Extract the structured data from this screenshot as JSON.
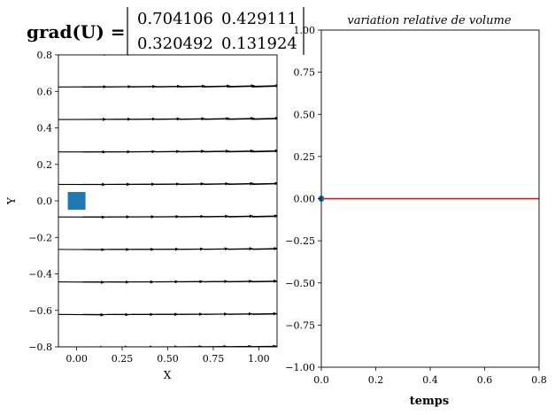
{
  "header": {
    "formula_label": "grad(U) =",
    "matrix_rows": [
      [
        "0.704106",
        "0.429111"
      ],
      [
        "0.320492",
        "0.131924"
      ]
    ]
  },
  "chart_data": [
    {
      "type": "scatter",
      "subtype": "quiver-field",
      "title": "",
      "xlabel": "X",
      "ylabel": "Y",
      "xlim": [
        -0.1,
        1.1
      ],
      "ylim": [
        -0.8,
        0.8
      ],
      "xticks": [
        0.0,
        0.25,
        0.5,
        0.75,
        1.0
      ],
      "xtick_labels": [
        "0.00",
        "0.25",
        "0.50",
        "0.75",
        "1.00"
      ],
      "yticks": [
        -0.8,
        -0.6,
        -0.4,
        -0.2,
        0.0,
        0.2,
        0.4,
        0.6,
        0.8
      ],
      "ytick_labels": [
        "−0.8",
        "−0.6",
        "−0.4",
        "−0.2",
        "0.0",
        "0.2",
        "0.4",
        "0.6",
        "0.8"
      ],
      "grid": false,
      "marker": {
        "shape": "square",
        "x": 0.0,
        "y": 0.0,
        "color": "#1f77b4"
      },
      "field": {
        "x_start": -0.1,
        "x_step": 0.133,
        "x_count": 9,
        "y_start": -0.8,
        "y_step": 0.178,
        "y_count": 10,
        "gradient": [
          [
            0.704106,
            0.429111
          ],
          [
            0.320492,
            0.131924
          ]
        ],
        "base_vector": [
          1.0,
          0.0
        ],
        "arrow_color": "#000000"
      }
    },
    {
      "type": "line",
      "title": "variation relative de volume",
      "xlabel": "temps",
      "ylabel": "",
      "xlim": [
        0.0,
        0.8
      ],
      "ylim": [
        -1.0,
        1.0
      ],
      "xticks": [
        0.0,
        0.2,
        0.4,
        0.6,
        0.8
      ],
      "xtick_labels": [
        "0.0",
        "0.2",
        "0.4",
        "0.6",
        "0.8"
      ],
      "yticks": [
        -1.0,
        -0.75,
        -0.5,
        -0.25,
        0.0,
        0.25,
        0.5,
        0.75,
        1.0
      ],
      "ytick_labels": [
        "−1.00",
        "−0.75",
        "−0.50",
        "−0.25",
        "0.00",
        "0.25",
        "0.50",
        "0.75",
        "1.00"
      ],
      "grid": false,
      "series": [
        {
          "x": [
            0.0,
            0.8
          ],
          "y": [
            0.0,
            0.0
          ],
          "color": "#ff0000"
        }
      ],
      "point": {
        "x": 0.0,
        "y": 0.0,
        "color": "#1f77b4"
      }
    }
  ]
}
